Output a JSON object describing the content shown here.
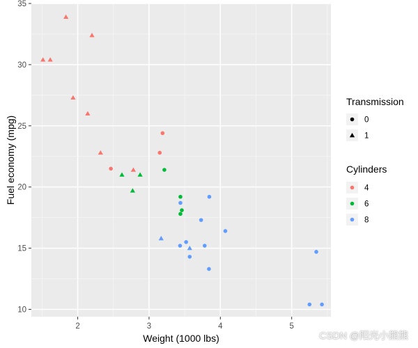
{
  "chart_data": {
    "type": "scatter",
    "xlabel": "Weight (1000 lbs)",
    "ylabel": "Fuel economy (mpg)",
    "xlim": [
      1.35,
      5.55
    ],
    "ylim": [
      9.4,
      35.0
    ],
    "xticks": [
      2,
      3,
      4,
      5
    ],
    "yticks": [
      10,
      15,
      20,
      25,
      30,
      35
    ],
    "grid": true,
    "legend_placement": "right",
    "colors": {
      "4": "#f8766d",
      "6": "#00ba38",
      "8": "#619cff"
    },
    "legends": [
      {
        "title": "Transmission",
        "entries": [
          {
            "label": "0",
            "shape": "circle"
          },
          {
            "label": "1",
            "shape": "triangle"
          }
        ]
      },
      {
        "title": "Cylinders",
        "entries": [
          {
            "label": "4",
            "shape": "circle",
            "color": "#f8766d"
          },
          {
            "label": "6",
            "shape": "circle",
            "color": "#00ba38"
          },
          {
            "label": "8",
            "shape": "circle",
            "color": "#619cff"
          }
        ]
      }
    ],
    "points": [
      {
        "x": 1.835,
        "y": 33.9,
        "transmission": "1",
        "cylinders": "4"
      },
      {
        "x": 2.2,
        "y": 32.4,
        "transmission": "1",
        "cylinders": "4"
      },
      {
        "x": 1.513,
        "y": 30.4,
        "transmission": "1",
        "cylinders": "4"
      },
      {
        "x": 1.615,
        "y": 30.4,
        "transmission": "1",
        "cylinders": "4"
      },
      {
        "x": 1.935,
        "y": 27.3,
        "transmission": "1",
        "cylinders": "4"
      },
      {
        "x": 2.14,
        "y": 26.0,
        "transmission": "1",
        "cylinders": "4"
      },
      {
        "x": 3.19,
        "y": 24.4,
        "transmission": "0",
        "cylinders": "4"
      },
      {
        "x": 2.32,
        "y": 22.8,
        "transmission": "1",
        "cylinders": "4"
      },
      {
        "x": 3.15,
        "y": 22.8,
        "transmission": "0",
        "cylinders": "4"
      },
      {
        "x": 2.465,
        "y": 21.5,
        "transmission": "0",
        "cylinders": "4"
      },
      {
        "x": 2.78,
        "y": 21.4,
        "transmission": "1",
        "cylinders": "4"
      },
      {
        "x": 3.215,
        "y": 21.4,
        "transmission": "0",
        "cylinders": "6"
      },
      {
        "x": 2.62,
        "y": 21.0,
        "transmission": "1",
        "cylinders": "6"
      },
      {
        "x": 2.875,
        "y": 21.0,
        "transmission": "1",
        "cylinders": "6"
      },
      {
        "x": 2.77,
        "y": 19.7,
        "transmission": "1",
        "cylinders": "6"
      },
      {
        "x": 3.44,
        "y": 19.2,
        "transmission": "0",
        "cylinders": "6"
      },
      {
        "x": 3.46,
        "y": 18.1,
        "transmission": "0",
        "cylinders": "6"
      },
      {
        "x": 3.44,
        "y": 17.8,
        "transmission": "0",
        "cylinders": "6"
      },
      {
        "x": 3.845,
        "y": 19.2,
        "transmission": "0",
        "cylinders": "8"
      },
      {
        "x": 3.44,
        "y": 18.7,
        "transmission": "0",
        "cylinders": "8"
      },
      {
        "x": 3.73,
        "y": 17.3,
        "transmission": "0",
        "cylinders": "8"
      },
      {
        "x": 4.07,
        "y": 16.4,
        "transmission": "0",
        "cylinders": "8"
      },
      {
        "x": 3.17,
        "y": 15.8,
        "transmission": "1",
        "cylinders": "8"
      },
      {
        "x": 3.52,
        "y": 15.5,
        "transmission": "0",
        "cylinders": "8"
      },
      {
        "x": 3.435,
        "y": 15.2,
        "transmission": "0",
        "cylinders": "8"
      },
      {
        "x": 3.78,
        "y": 15.2,
        "transmission": "0",
        "cylinders": "8"
      },
      {
        "x": 3.57,
        "y": 15.0,
        "transmission": "1",
        "cylinders": "8"
      },
      {
        "x": 5.345,
        "y": 14.7,
        "transmission": "0",
        "cylinders": "8"
      },
      {
        "x": 3.57,
        "y": 14.3,
        "transmission": "0",
        "cylinders": "8"
      },
      {
        "x": 3.84,
        "y": 13.3,
        "transmission": "0",
        "cylinders": "8"
      },
      {
        "x": 5.25,
        "y": 10.4,
        "transmission": "0",
        "cylinders": "8"
      },
      {
        "x": 5.424,
        "y": 10.4,
        "transmission": "0",
        "cylinders": "8"
      }
    ]
  },
  "watermark": "CSDN @阳光小熊熊"
}
